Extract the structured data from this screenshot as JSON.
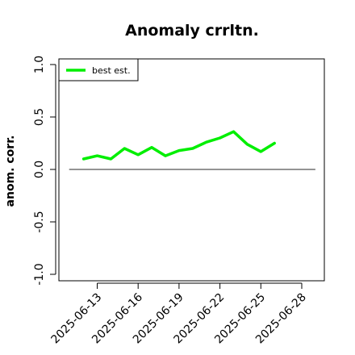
{
  "chart_data": {
    "type": "line",
    "title": "Anomaly crrltn.",
    "ylabel": "anom. corr.",
    "xlabel": "",
    "ylim": [
      -1.0,
      1.0
    ],
    "yticks": [
      -1.0,
      -0.5,
      0.0,
      0.5,
      1.0
    ],
    "ytick_labels": [
      "-1.0",
      "-0.5",
      "0.0",
      "0.5",
      "1.0"
    ],
    "xticks": [
      "2025-06-13",
      "2025-06-16",
      "2025-06-19",
      "2025-06-22",
      "2025-06-25",
      "2025-06-28"
    ],
    "xlim": [
      "2025-06-10",
      "2025-06-29"
    ],
    "reference_line": {
      "y": 0.0,
      "from": "2025-06-11",
      "to": "2025-06-29",
      "color": "#555555"
    },
    "legend": {
      "position": "top-left"
    },
    "series": [
      {
        "name": "best est.",
        "color": "#00ee00",
        "x": [
          "2025-06-12",
          "2025-06-13",
          "2025-06-14",
          "2025-06-15",
          "2025-06-16",
          "2025-06-17",
          "2025-06-18",
          "2025-06-19",
          "2025-06-20",
          "2025-06-21",
          "2025-06-22",
          "2025-06-23",
          "2025-06-24",
          "2025-06-25",
          "2025-06-26"
        ],
        "y": [
          0.1,
          0.13,
          0.1,
          0.2,
          0.14,
          0.21,
          0.13,
          0.18,
          0.2,
          0.26,
          0.3,
          0.36,
          0.24,
          0.17,
          0.25
        ]
      }
    ]
  }
}
